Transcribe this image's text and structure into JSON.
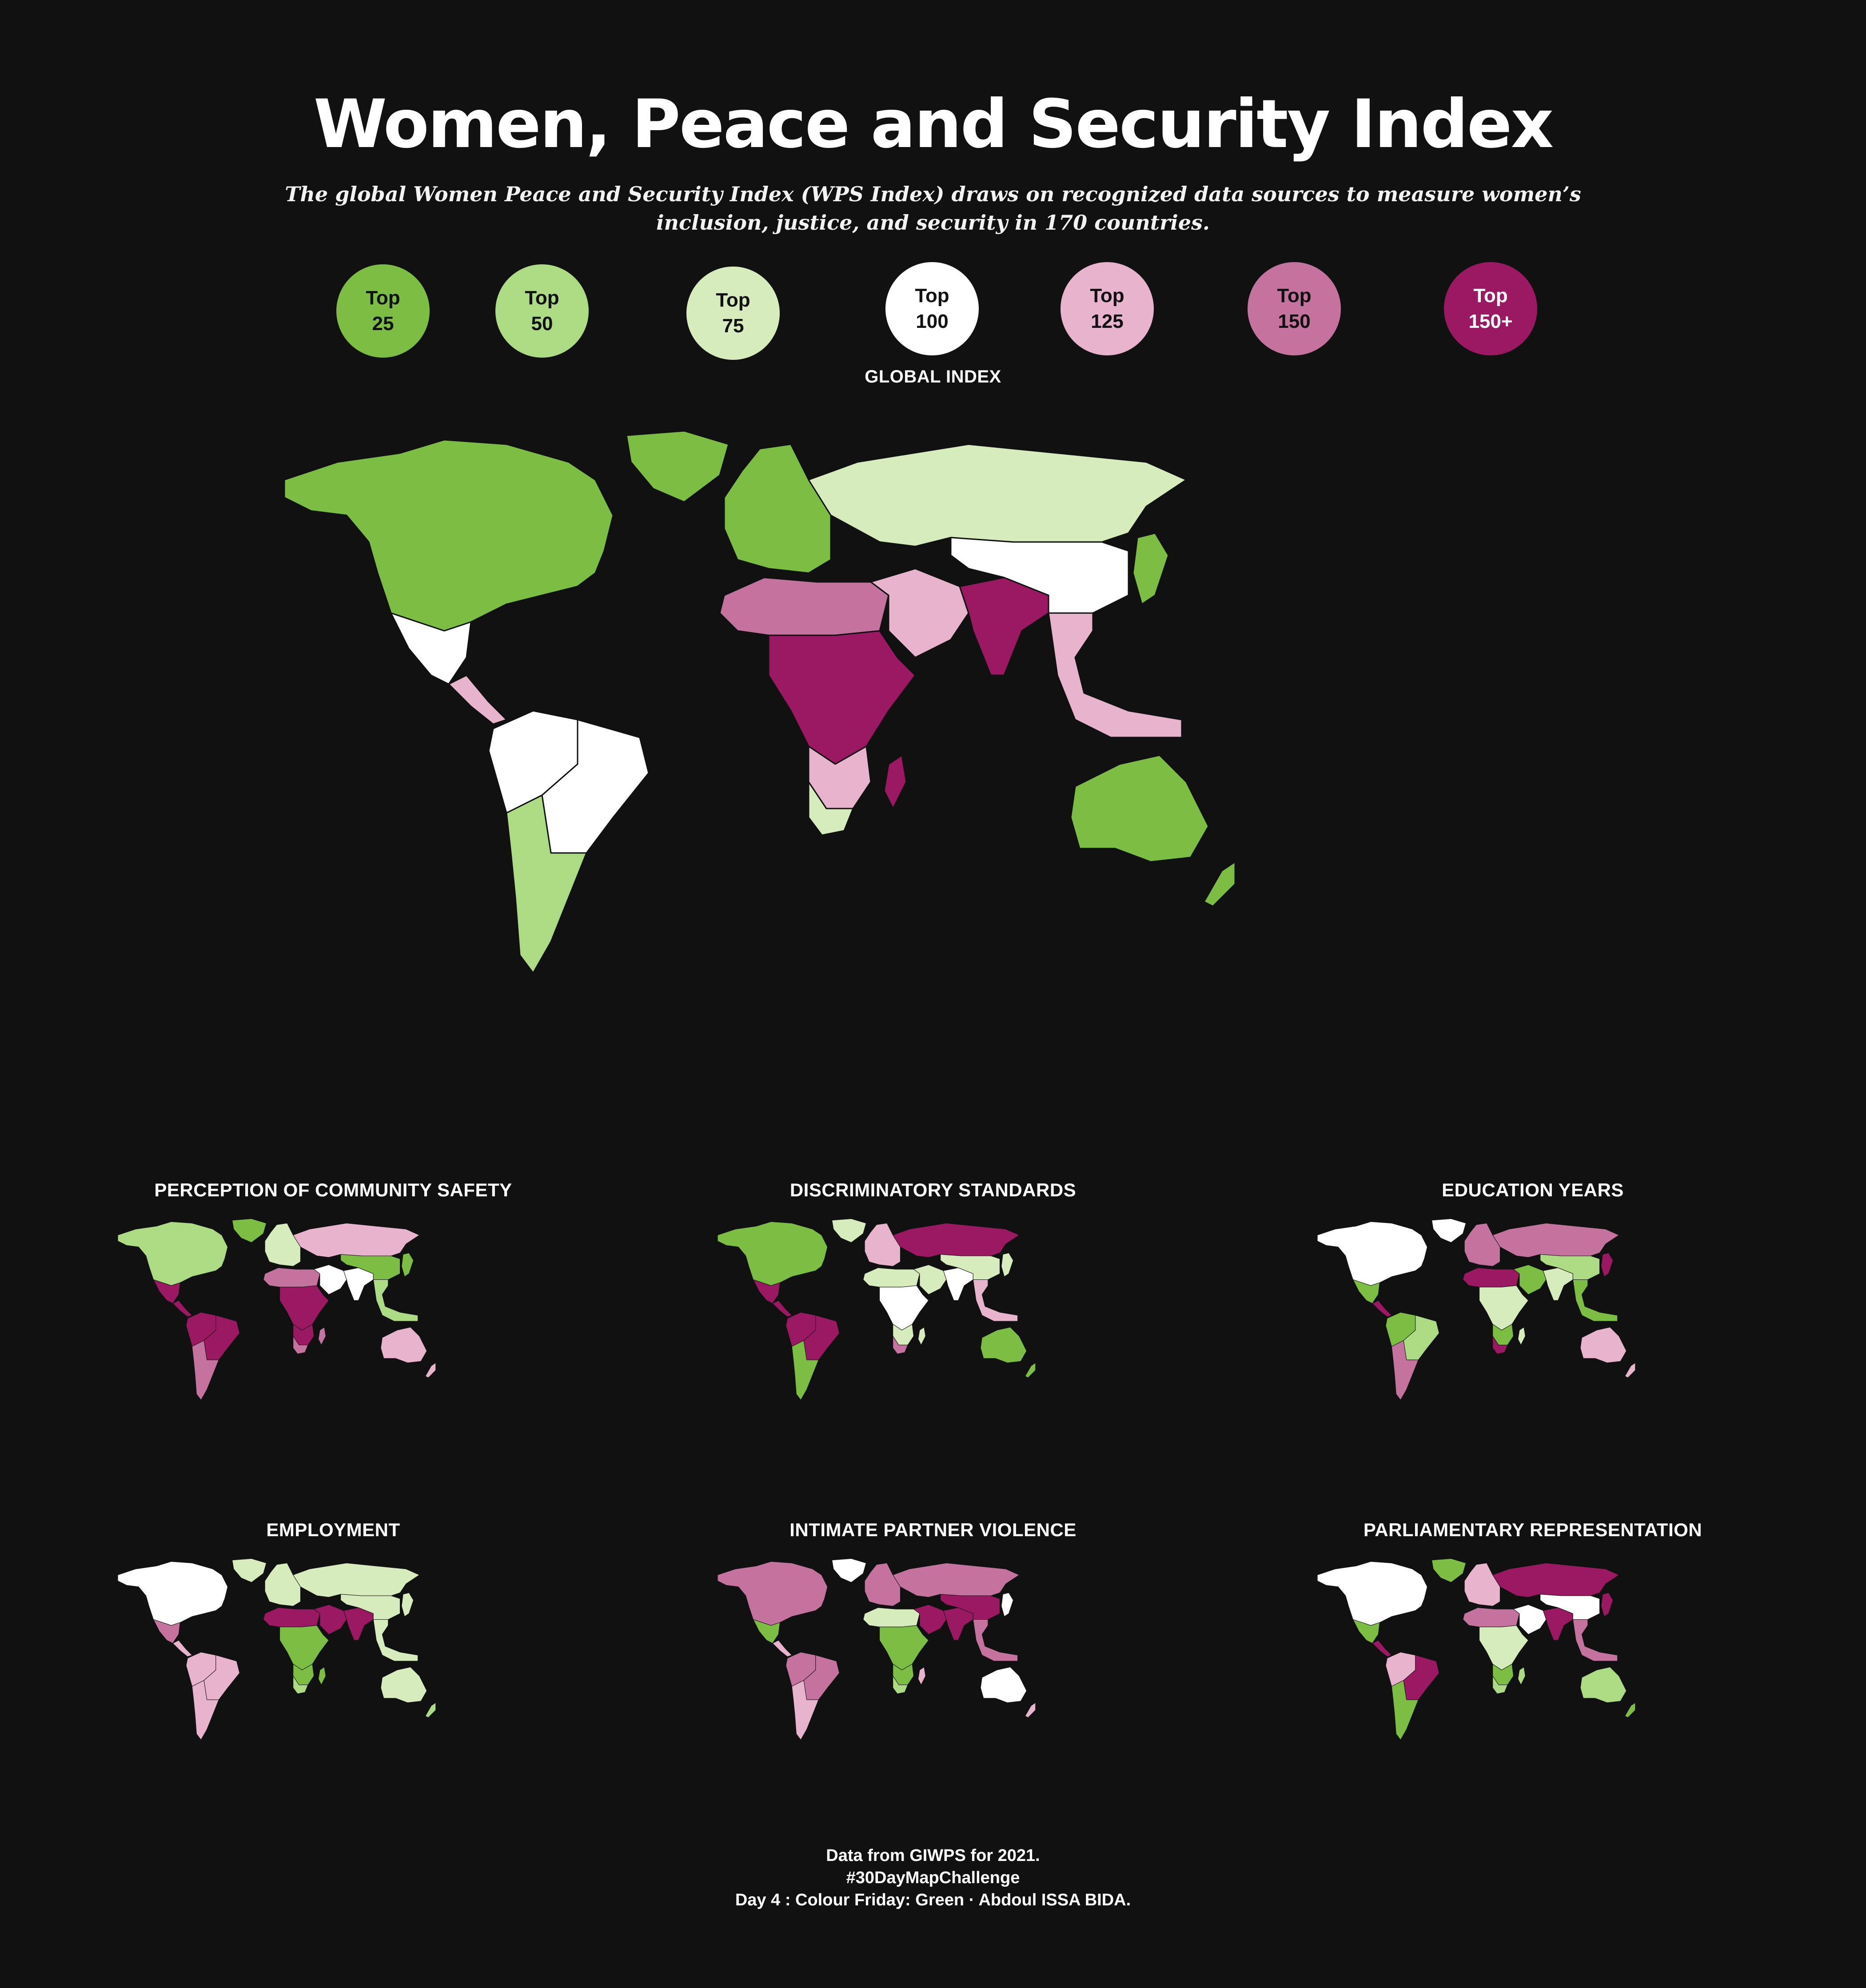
{
  "title": "Women, Peace and Security Index",
  "subtitle": "The global Women Peace and Security Index (WPS Index) draws on recognized data sources to measure women’s inclusion, justice, and security in 170 countries.",
  "legend": [
    {
      "line1": "Top",
      "line2": "25",
      "color": "#7cbd43",
      "text_color": "#111111"
    },
    {
      "line1": "Top",
      "line2": "50",
      "color": "#addb84",
      "text_color": "#111111"
    },
    {
      "line1": "Top",
      "line2": "75",
      "color": "#d6ecbd",
      "text_color": "#111111"
    },
    {
      "line1": "Top",
      "line2": "100",
      "color": "#ffffff",
      "text_color": "#111111"
    },
    {
      "line1": "Top",
      "line2": "125",
      "color": "#e7b3cd",
      "text_color": "#111111"
    },
    {
      "line1": "Top",
      "line2": "150",
      "color": "#c4729e",
      "text_color": "#111111"
    },
    {
      "line1": "Top",
      "line2": "150+",
      "color": "#9b1863",
      "text_color": "#ffffff"
    }
  ],
  "main_map": {
    "label": "GLOBAL INDEX",
    "regions": {
      "north_america": "#7cbd43",
      "greenland": "#7cbd43",
      "mexico": "#ffffff",
      "central_america": "#e7b3cd",
      "south_america_north": "#ffffff",
      "south_america_south": "#addb84",
      "brazil": "#ffffff",
      "europe": "#7cbd43",
      "russia": "#d6ecbd",
      "north_africa": "#c4729e",
      "central_africa": "#9b1863",
      "southern_africa": "#e7b3cd",
      "south_africa": "#d6ecbd",
      "madagascar": "#9b1863",
      "middle_east": "#e7b3cd",
      "south_asia": "#9b1863",
      "china": "#ffffff",
      "southeast_asia": "#e7b3cd",
      "japan": "#7cbd43",
      "australia": "#7cbd43",
      "new_zealand": "#7cbd43"
    }
  },
  "small_maps": [
    {
      "label": "PERCEPTION OF COMMUNITY SAFETY",
      "regions": {
        "north_america": "#addb84",
        "greenland": "#7cbd43",
        "mexico": "#9b1863",
        "central_america": "#9b1863",
        "south_america_north": "#9b1863",
        "south_america_south": "#c4729e",
        "brazil": "#9b1863",
        "europe": "#d6ecbd",
        "russia": "#e7b3cd",
        "north_africa": "#c4729e",
        "central_africa": "#9b1863",
        "southern_africa": "#9b1863",
        "south_africa": "#c4729e",
        "madagascar": "#c4729e",
        "middle_east": "#ffffff",
        "south_asia": "#ffffff",
        "china": "#7cbd43",
        "southeast_asia": "#addb84",
        "japan": "#7cbd43",
        "australia": "#e7b3cd",
        "new_zealand": "#e7b3cd"
      }
    },
    {
      "label": "DISCRIMINATORY STANDARDS",
      "regions": {
        "north_america": "#7cbd43",
        "greenland": "#d6ecbd",
        "mexico": "#9b1863",
        "central_america": "#9b1863",
        "south_america_north": "#9b1863",
        "south_america_south": "#7cbd43",
        "brazil": "#9b1863",
        "europe": "#e7b3cd",
        "russia": "#9b1863",
        "north_africa": "#d6ecbd",
        "central_africa": "#ffffff",
        "southern_africa": "#d6ecbd",
        "south_africa": "#c4729e",
        "madagascar": "#d6ecbd",
        "middle_east": "#d6ecbd",
        "south_asia": "#ffffff",
        "china": "#d6ecbd",
        "southeast_asia": "#e7b3cd",
        "japan": "#d6ecbd",
        "australia": "#7cbd43",
        "new_zealand": "#7cbd43"
      }
    },
    {
      "label": "EDUCATION YEARS",
      "regions": {
        "north_america": "#ffffff",
        "greenland": "#ffffff",
        "mexico": "#7cbd43",
        "central_america": "#9b1863",
        "south_america_north": "#7cbd43",
        "south_america_south": "#c4729e",
        "brazil": "#addb84",
        "europe": "#c4729e",
        "russia": "#c4729e",
        "north_africa": "#9b1863",
        "central_africa": "#d6ecbd",
        "southern_africa": "#7cbd43",
        "south_africa": "#9b1863",
        "madagascar": "#d6ecbd",
        "middle_east": "#7cbd43",
        "south_asia": "#d6ecbd",
        "china": "#addb84",
        "southeast_asia": "#7cbd43",
        "japan": "#9b1863",
        "australia": "#e7b3cd",
        "new_zealand": "#e7b3cd"
      }
    },
    {
      "label": "EMPLOYMENT",
      "regions": {
        "north_america": "#ffffff",
        "greenland": "#d6ecbd",
        "mexico": "#c4729e",
        "central_america": "#e7b3cd",
        "south_america_north": "#e7b3cd",
        "south_america_south": "#e7b3cd",
        "brazil": "#e7b3cd",
        "europe": "#d6ecbd",
        "russia": "#d6ecbd",
        "north_africa": "#9b1863",
        "central_africa": "#7cbd43",
        "southern_africa": "#7cbd43",
        "south_africa": "#addb84",
        "madagascar": "#7cbd43",
        "middle_east": "#9b1863",
        "south_asia": "#9b1863",
        "china": "#d6ecbd",
        "southeast_asia": "#d6ecbd",
        "japan": "#d6ecbd",
        "australia": "#d6ecbd",
        "new_zealand": "#addb84"
      }
    },
    {
      "label": "INTIMATE PARTNER VIOLENCE",
      "regions": {
        "north_america": "#c4729e",
        "greenland": "#ffffff",
        "mexico": "#7cbd43",
        "central_america": "#e7b3cd",
        "south_america_north": "#c4729e",
        "south_america_south": "#e7b3cd",
        "brazil": "#c4729e",
        "europe": "#c4729e",
        "russia": "#c4729e",
        "north_africa": "#d6ecbd",
        "central_africa": "#7cbd43",
        "southern_africa": "#7cbd43",
        "south_africa": "#addb84",
        "madagascar": "#e7b3cd",
        "middle_east": "#9b1863",
        "south_asia": "#9b1863",
        "china": "#9b1863",
        "southeast_asia": "#c4729e",
        "japan": "#ffffff",
        "australia": "#ffffff",
        "new_zealand": "#e7b3cd"
      }
    },
    {
      "label": "PARLIAMENTARY REPRESENTATION",
      "regions": {
        "north_america": "#ffffff",
        "greenland": "#7cbd43",
        "mexico": "#7cbd43",
        "central_america": "#9b1863",
        "south_america_north": "#e7b3cd",
        "south_america_south": "#7cbd43",
        "brazil": "#9b1863",
        "europe": "#e7b3cd",
        "russia": "#9b1863",
        "north_africa": "#c4729e",
        "central_africa": "#d6ecbd",
        "southern_africa": "#7cbd43",
        "south_africa": "#addb84",
        "madagascar": "#addb84",
        "middle_east": "#ffffff",
        "south_asia": "#9b1863",
        "china": "#ffffff",
        "southeast_asia": "#c4729e",
        "japan": "#9b1863",
        "australia": "#addb84",
        "new_zealand": "#7cbd43"
      }
    }
  ],
  "footer": {
    "line1": "Data from GIWPS for 2021.",
    "line2": "#30DayMapChallenge",
    "line3": "Day 4 : Colour Friday: Green · Abdoul ISSA BIDA."
  }
}
